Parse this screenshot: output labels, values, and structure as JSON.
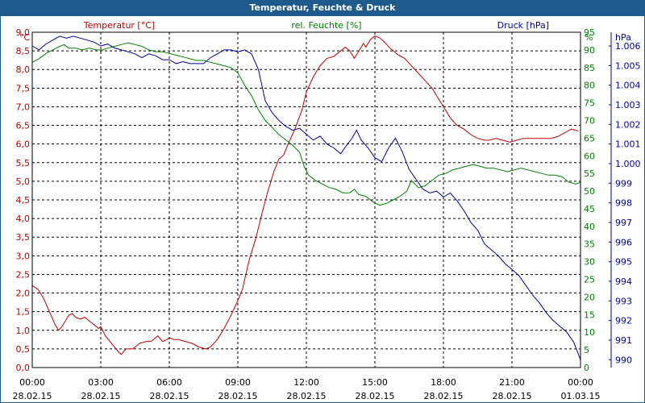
{
  "window": {
    "title": "Temperatur, Feuchte & Druck"
  },
  "colors": {
    "temperature": "#c00000",
    "humidity": "#008000",
    "pressure": "#0000a0",
    "grid": "#000000",
    "titlebar": "#1e5a8c"
  },
  "chart_data": {
    "type": "line",
    "title": "Temperatur, Feuchte & Druck",
    "grid": true,
    "x_ticks": [
      {
        "time": "00:00",
        "date": "28.02.15"
      },
      {
        "time": "03:00",
        "date": "28.02.15"
      },
      {
        "time": "06:00",
        "date": "28.02.15"
      },
      {
        "time": "09:00",
        "date": "28.02.15"
      },
      {
        "time": "12:00",
        "date": "28.02.15"
      },
      {
        "time": "15:00",
        "date": "28.02.15"
      },
      {
        "time": "18:00",
        "date": "28.02.15"
      },
      {
        "time": "21:00",
        "date": "28.02.15"
      },
      {
        "time": "00:00",
        "date": "01.03.15"
      }
    ],
    "x_range_hours": [
      0,
      24
    ],
    "axes": {
      "temperature": {
        "label": "Temperatur [°C]",
        "unit": "°C",
        "range": [
          0,
          9
        ],
        "ticks": [
          "0,0",
          "0,5",
          "1,0",
          "1,5",
          "2,0",
          "2,5",
          "3,0",
          "3,5",
          "4,0",
          "4,5",
          "5,0",
          "5,5",
          "6,0",
          "6,5",
          "7,0",
          "7,5",
          "8,0",
          "8,5",
          "9,0"
        ]
      },
      "humidity": {
        "label": "rel. Feuchte [%]",
        "unit": "%",
        "range": [
          0,
          95
        ],
        "ticks": [
          "0",
          "5",
          "10",
          "15",
          "20",
          "25",
          "30",
          "35",
          "40",
          "45",
          "50",
          "55",
          "60",
          "65",
          "70",
          "75",
          "80",
          "85",
          "90",
          "95"
        ]
      },
      "pressure": {
        "label": "Druck [hPa]",
        "unit": "hPa",
        "range": [
          989.6,
          1006.7
        ],
        "ticks": [
          "990",
          "991",
          "992",
          "993",
          "994",
          "995",
          "996",
          "997",
          "998",
          "999",
          "1.000",
          "1.001",
          "1.002",
          "1.003",
          "1.004",
          "1.005",
          "1.006"
        ],
        "tick_values": [
          990,
          991,
          992,
          993,
          994,
          995,
          996,
          997,
          998,
          999,
          1000,
          1001,
          1002,
          1003,
          1004,
          1005,
          1006
        ]
      }
    },
    "series": [
      {
        "name": "Temperatur [°C]",
        "axis": "temperature",
        "points": [
          [
            0,
            2.2
          ],
          [
            0.25,
            2.1
          ],
          [
            0.5,
            1.85
          ],
          [
            0.75,
            1.5
          ],
          [
            1,
            1.15
          ],
          [
            1.15,
            1.0
          ],
          [
            1.3,
            1.1
          ],
          [
            1.6,
            1.4
          ],
          [
            1.75,
            1.45
          ],
          [
            1.9,
            1.35
          ],
          [
            2.1,
            1.3
          ],
          [
            2.3,
            1.35
          ],
          [
            2.5,
            1.25
          ],
          [
            2.7,
            1.15
          ],
          [
            2.9,
            1.05
          ],
          [
            3.0,
            1.1
          ],
          [
            3.2,
            0.85
          ],
          [
            3.4,
            0.7
          ],
          [
            3.6,
            0.55
          ],
          [
            3.8,
            0.4
          ],
          [
            3.9,
            0.35
          ],
          [
            4.1,
            0.5
          ],
          [
            4.4,
            0.5
          ],
          [
            4.7,
            0.65
          ],
          [
            5.0,
            0.7
          ],
          [
            5.2,
            0.7
          ],
          [
            5.5,
            0.85
          ],
          [
            5.7,
            0.7
          ],
          [
            5.9,
            0.75
          ],
          [
            6.0,
            0.8
          ],
          [
            6.2,
            0.75
          ],
          [
            6.4,
            0.75
          ],
          [
            6.7,
            0.7
          ],
          [
            7.0,
            0.65
          ],
          [
            7.3,
            0.55
          ],
          [
            7.6,
            0.5
          ],
          [
            7.8,
            0.55
          ],
          [
            8.1,
            0.75
          ],
          [
            8.4,
            1.05
          ],
          [
            8.7,
            1.4
          ],
          [
            9.0,
            1.8
          ],
          [
            9.2,
            2.1
          ],
          [
            9.5,
            2.9
          ],
          [
            9.8,
            3.5
          ],
          [
            10.0,
            4.0
          ],
          [
            10.3,
            4.7
          ],
          [
            10.6,
            5.3
          ],
          [
            10.8,
            5.6
          ],
          [
            11.0,
            5.7
          ],
          [
            11.2,
            6.0
          ],
          [
            11.5,
            6.4
          ],
          [
            11.8,
            6.9
          ],
          [
            12.0,
            7.4
          ],
          [
            12.3,
            7.8
          ],
          [
            12.6,
            8.1
          ],
          [
            12.9,
            8.3
          ],
          [
            13.2,
            8.35
          ],
          [
            13.5,
            8.5
          ],
          [
            13.7,
            8.6
          ],
          [
            13.9,
            8.5
          ],
          [
            14.1,
            8.3
          ],
          [
            14.3,
            8.5
          ],
          [
            14.5,
            8.7
          ],
          [
            14.6,
            8.6
          ],
          [
            14.8,
            8.8
          ],
          [
            15.0,
            8.9
          ],
          [
            15.2,
            8.85
          ],
          [
            15.4,
            8.75
          ],
          [
            15.7,
            8.55
          ],
          [
            16.0,
            8.4
          ],
          [
            16.3,
            8.3
          ],
          [
            16.6,
            8.1
          ],
          [
            16.9,
            7.9
          ],
          [
            17.2,
            7.7
          ],
          [
            17.5,
            7.5
          ],
          [
            17.8,
            7.2
          ],
          [
            18.0,
            7.0
          ],
          [
            18.3,
            6.7
          ],
          [
            18.6,
            6.5
          ],
          [
            18.9,
            6.4
          ],
          [
            19.2,
            6.25
          ],
          [
            19.5,
            6.15
          ],
          [
            19.8,
            6.1
          ],
          [
            20.0,
            6.1
          ],
          [
            20.3,
            6.15
          ],
          [
            20.6,
            6.1
          ],
          [
            20.9,
            6.05
          ],
          [
            21.2,
            6.1
          ],
          [
            21.5,
            6.15
          ],
          [
            21.8,
            6.15
          ],
          [
            22.1,
            6.15
          ],
          [
            22.4,
            6.15
          ],
          [
            22.7,
            6.15
          ],
          [
            23.0,
            6.2
          ],
          [
            23.3,
            6.3
          ],
          [
            23.6,
            6.4
          ],
          [
            23.9,
            6.35
          ]
        ]
      },
      {
        "name": "rel. Feuchte [%]",
        "axis": "humidity",
        "points": [
          [
            0,
            86.5
          ],
          [
            0.3,
            87.5
          ],
          [
            0.6,
            89
          ],
          [
            0.9,
            90
          ],
          [
            1.2,
            91
          ],
          [
            1.4,
            91.5
          ],
          [
            1.6,
            90.5
          ],
          [
            1.9,
            90.5
          ],
          [
            2.2,
            90
          ],
          [
            2.5,
            90.5
          ],
          [
            2.8,
            90
          ],
          [
            3.1,
            90
          ],
          [
            3.3,
            90.5
          ],
          [
            3.6,
            91
          ],
          [
            3.9,
            91.5
          ],
          [
            4.2,
            92
          ],
          [
            4.5,
            91.5
          ],
          [
            4.8,
            91
          ],
          [
            5.1,
            90
          ],
          [
            5.4,
            89.5
          ],
          [
            5.7,
            89.5
          ],
          [
            6.0,
            89
          ],
          [
            6.3,
            88.5
          ],
          [
            6.6,
            88
          ],
          [
            6.9,
            87.5
          ],
          [
            7.2,
            87
          ],
          [
            7.5,
            87
          ],
          [
            7.8,
            86.5
          ],
          [
            8.1,
            86
          ],
          [
            8.4,
            85.5
          ],
          [
            8.7,
            85
          ],
          [
            9.0,
            83.5
          ],
          [
            9.3,
            80
          ],
          [
            9.6,
            77
          ],
          [
            9.9,
            73
          ],
          [
            10.2,
            70
          ],
          [
            10.5,
            68
          ],
          [
            10.8,
            66
          ],
          [
            11.1,
            64.5
          ],
          [
            11.4,
            63
          ],
          [
            11.7,
            61
          ],
          [
            11.9,
            57
          ],
          [
            12.1,
            54.5
          ],
          [
            12.4,
            53
          ],
          [
            12.7,
            52
          ],
          [
            13.0,
            51
          ],
          [
            13.3,
            50.5
          ],
          [
            13.6,
            49.5
          ],
          [
            13.9,
            49.5
          ],
          [
            14.1,
            50.5
          ],
          [
            14.3,
            49
          ],
          [
            14.6,
            48.5
          ],
          [
            14.9,
            47
          ],
          [
            15.2,
            46
          ],
          [
            15.5,
            46.5
          ],
          [
            15.8,
            47.5
          ],
          [
            16.1,
            48.5
          ],
          [
            16.4,
            50
          ],
          [
            16.6,
            53
          ],
          [
            16.9,
            51
          ],
          [
            17.2,
            51.5
          ],
          [
            17.5,
            53
          ],
          [
            17.8,
            54.5
          ],
          [
            18.1,
            55
          ],
          [
            18.4,
            56
          ],
          [
            18.7,
            56.5
          ],
          [
            19.0,
            57
          ],
          [
            19.3,
            57.5
          ],
          [
            19.6,
            57
          ],
          [
            19.9,
            56.5
          ],
          [
            20.2,
            56.5
          ],
          [
            20.5,
            56
          ],
          [
            20.8,
            55.5
          ],
          [
            21.1,
            56
          ],
          [
            21.4,
            56.5
          ],
          [
            21.7,
            56
          ],
          [
            22.0,
            55.5
          ],
          [
            22.3,
            55
          ],
          [
            22.6,
            54.5
          ],
          [
            22.9,
            54.5
          ],
          [
            23.2,
            54
          ],
          [
            23.5,
            52.5
          ],
          [
            23.8,
            52
          ],
          [
            24.0,
            52.5
          ]
        ]
      },
      {
        "name": "Druck [hPa]",
        "axis": "pressure",
        "points": [
          [
            0,
            1006.0
          ],
          [
            0.3,
            1005.8
          ],
          [
            0.6,
            1006.1
          ],
          [
            0.9,
            1006.3
          ],
          [
            1.2,
            1006.5
          ],
          [
            1.5,
            1006.4
          ],
          [
            1.8,
            1006.5
          ],
          [
            2.1,
            1006.4
          ],
          [
            2.4,
            1006.3
          ],
          [
            2.7,
            1006.2
          ],
          [
            3.0,
            1006.0
          ],
          [
            3.3,
            1006.1
          ],
          [
            3.6,
            1005.9
          ],
          [
            3.9,
            1005.8
          ],
          [
            4.2,
            1005.7
          ],
          [
            4.5,
            1005.6
          ],
          [
            4.8,
            1005.4
          ],
          [
            5.1,
            1005.6
          ],
          [
            5.4,
            1005.5
          ],
          [
            5.7,
            1005.3
          ],
          [
            6.0,
            1005.3
          ],
          [
            6.3,
            1005.1
          ],
          [
            6.6,
            1005.2
          ],
          [
            6.9,
            1005.1
          ],
          [
            7.2,
            1005.1
          ],
          [
            7.5,
            1005.1
          ],
          [
            7.8,
            1005.4
          ],
          [
            8.1,
            1005.6
          ],
          [
            8.4,
            1005.8
          ],
          [
            8.7,
            1005.8
          ],
          [
            9.0,
            1005.7
          ],
          [
            9.3,
            1005.8
          ],
          [
            9.6,
            1005.6
          ],
          [
            9.9,
            1004.8
          ],
          [
            10.2,
            1003.2
          ],
          [
            10.5,
            1002.6
          ],
          [
            10.8,
            1002.2
          ],
          [
            11.1,
            1001.9
          ],
          [
            11.4,
            1001.7
          ],
          [
            11.7,
            1001.8
          ],
          [
            12.0,
            1001.5
          ],
          [
            12.3,
            1001.2
          ],
          [
            12.6,
            1001.4
          ],
          [
            12.9,
            1001.0
          ],
          [
            13.2,
            1000.8
          ],
          [
            13.5,
            1000.5
          ],
          [
            13.8,
            1001.0
          ],
          [
            14.0,
            1001.3
          ],
          [
            14.2,
            1001.7
          ],
          [
            14.4,
            1001.2
          ],
          [
            14.7,
            1000.8
          ],
          [
            15.0,
            1000.3
          ],
          [
            15.3,
            1000.1
          ],
          [
            15.6,
            1000.8
          ],
          [
            15.9,
            1001.3
          ],
          [
            16.2,
            1000.6
          ],
          [
            16.5,
            999.7
          ],
          [
            16.8,
            999.2
          ],
          [
            17.1,
            998.7
          ],
          [
            17.4,
            998.5
          ],
          [
            17.7,
            998.6
          ],
          [
            18.0,
            998.3
          ],
          [
            18.3,
            998.5
          ],
          [
            18.6,
            998.1
          ],
          [
            18.9,
            997.6
          ],
          [
            19.2,
            997.0
          ],
          [
            19.5,
            996.6
          ],
          [
            19.8,
            995.9
          ],
          [
            20.1,
            995.6
          ],
          [
            20.4,
            995.3
          ],
          [
            20.7,
            994.9
          ],
          [
            21.0,
            994.6
          ],
          [
            21.3,
            994.3
          ],
          [
            21.6,
            993.8
          ],
          [
            21.9,
            993.3
          ],
          [
            22.2,
            992.9
          ],
          [
            22.5,
            992.4
          ],
          [
            22.8,
            992.0
          ],
          [
            23.1,
            991.7
          ],
          [
            23.4,
            991.4
          ],
          [
            23.7,
            990.9
          ],
          [
            23.9,
            990.3
          ],
          [
            24.0,
            990.0
          ]
        ]
      }
    ]
  }
}
